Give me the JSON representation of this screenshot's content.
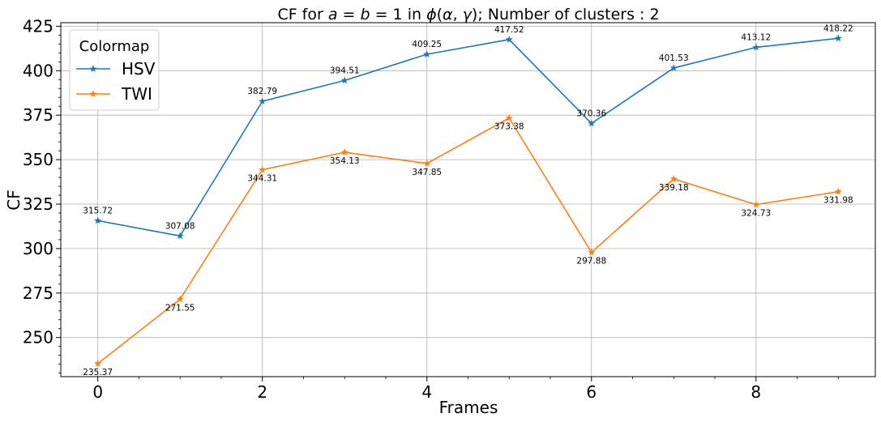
{
  "chart_data": {
    "type": "line",
    "title": "CF for a = b = 1 in ϕ(α, γ); Number of clusters : 2",
    "xlabel": "Frames",
    "ylabel": "CF",
    "xlim": [
      -0.45,
      9.45
    ],
    "ylim": [
      228,
      427
    ],
    "xticks": [
      0,
      2,
      4,
      6,
      8
    ],
    "yticks": [
      250,
      275,
      300,
      325,
      350,
      375,
      400,
      425
    ],
    "x": [
      0,
      1,
      2,
      3,
      4,
      5,
      6,
      7,
      8,
      9
    ],
    "grid": true,
    "legend": {
      "title": "Colormap",
      "position": "top-left"
    },
    "series": [
      {
        "name": "HSV",
        "color": "#1f77b4",
        "marker": "star",
        "values": [
          315.72,
          307.08,
          382.79,
          394.51,
          409.25,
          417.52,
          370.36,
          401.53,
          413.12,
          418.22
        ],
        "labels": [
          "315.72",
          "307.08",
          "382.79",
          "394.51",
          "409.25",
          "417.52",
          "370.36",
          "401.53",
          "413.12",
          "418.22"
        ],
        "label_placement": "above"
      },
      {
        "name": "TWI",
        "color": "#ff7f0e",
        "marker": "star",
        "values": [
          235.37,
          271.55,
          344.31,
          354.13,
          347.85,
          373.38,
          297.88,
          339.18,
          324.73,
          331.98
        ],
        "labels": [
          "235.37",
          "271.55",
          "344.31",
          "354.13",
          "347.85",
          "373.38",
          "297.88",
          "339.18",
          "324.73",
          "331.98"
        ],
        "label_placement": "below"
      }
    ]
  }
}
